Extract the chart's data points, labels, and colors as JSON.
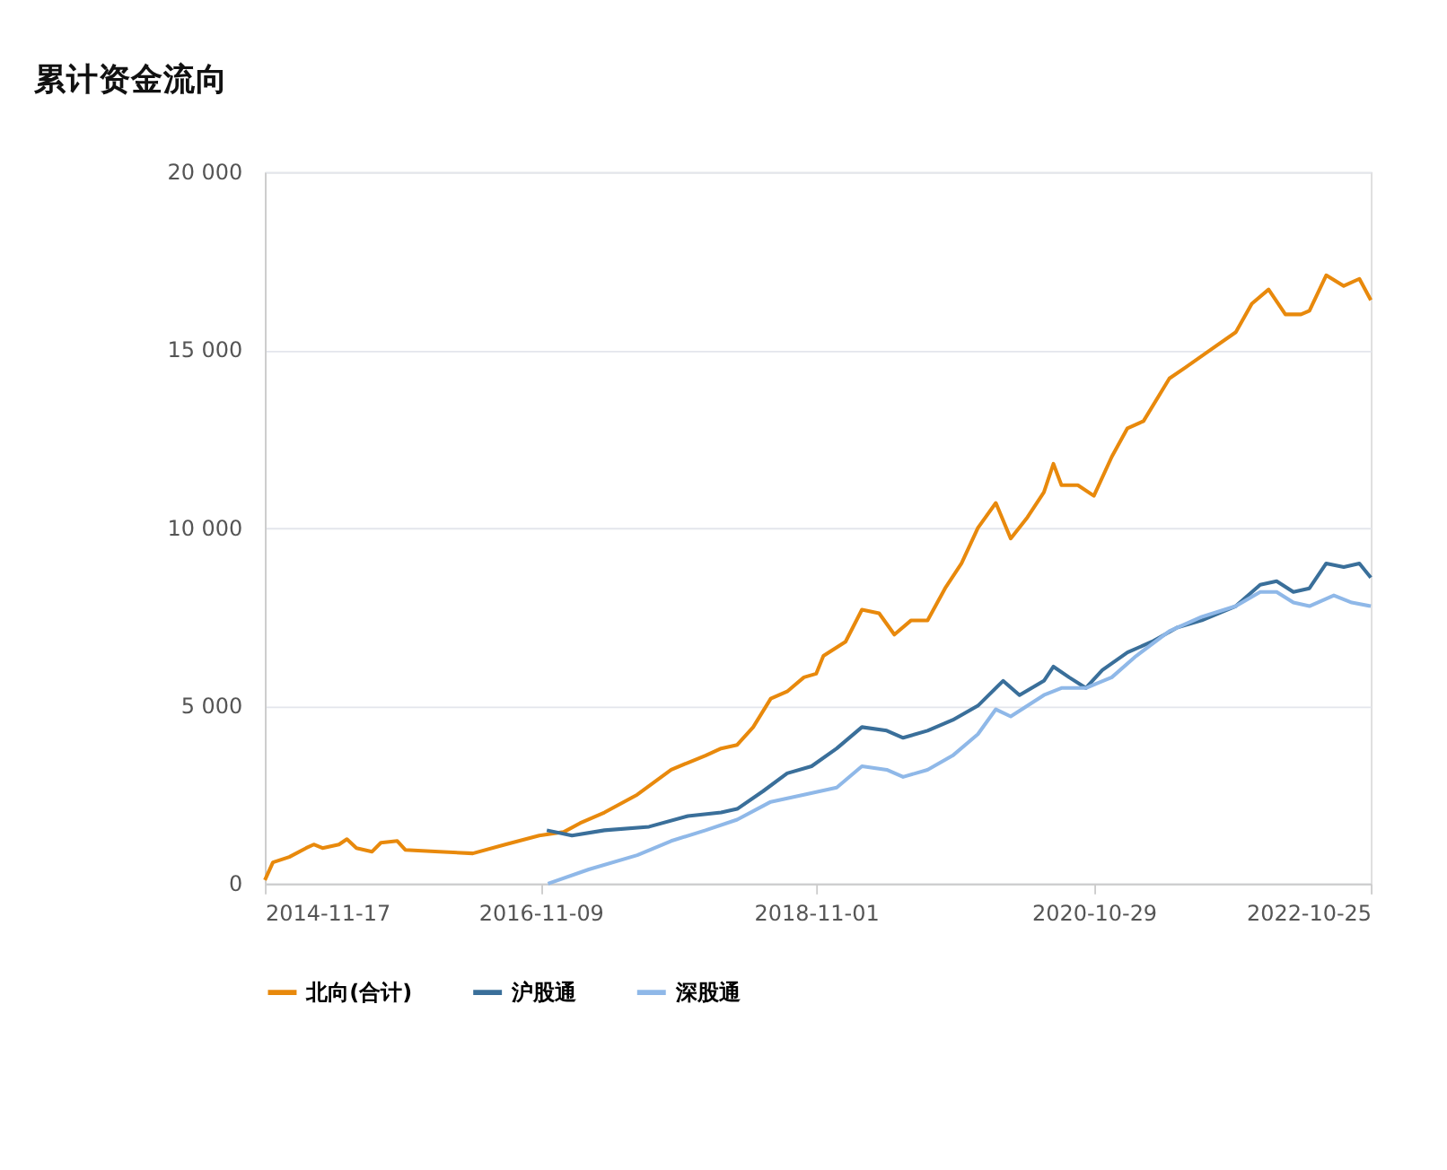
{
  "chart_data": {
    "type": "line",
    "title": "累计资金流向",
    "xlim": [
      "2014-11-17",
      "2022-10-25"
    ],
    "xticks": [
      "2014-11-17",
      "2016-11-09",
      "2018-11-01",
      "2020-10-29",
      "2022-10-25"
    ],
    "ylim": [
      0,
      20000
    ],
    "yticks": [
      0,
      {
        "value": 5000,
        "label": "5 000"
      },
      {
        "value": 10000,
        "label": "10 000"
      },
      {
        "value": 15000,
        "label": "15 000"
      },
      {
        "value": 20000,
        "label": "20 000"
      }
    ],
    "grid": "y",
    "legend": "bottom",
    "line_style": "solid",
    "marker": "none",
    "series": [
      {
        "name": "北向(合计)",
        "color": "#e8890c",
        "x": [
          "2014-11-17",
          "2014-12-08",
          "2015-01-20",
          "2015-03-05",
          "2015-03-25",
          "2015-04-17",
          "2015-05-30",
          "2015-06-20",
          "2015-07-15",
          "2015-08-25",
          "2015-09-17",
          "2015-10-30",
          "2015-11-20",
          "2016-02-17",
          "2016-05-15",
          "2016-08-08",
          "2016-11-05",
          "2017-01-08",
          "2017-02-20",
          "2017-04-25",
          "2017-07-20",
          "2017-10-17",
          "2017-11-30",
          "2018-01-15",
          "2018-02-25",
          "2018-04-08",
          "2018-05-20",
          "2018-07-05",
          "2018-08-17",
          "2018-09-30",
          "2018-11-01",
          "2018-11-20",
          "2019-01-17",
          "2019-03-01",
          "2019-04-15",
          "2019-05-25",
          "2019-07-08",
          "2019-08-20",
          "2019-10-05",
          "2019-11-17",
          "2019-12-30",
          "2020-02-15",
          "2020-03-25",
          "2020-05-08",
          "2020-06-20",
          "2020-07-15",
          "2020-08-05",
          "2020-09-17",
          "2020-10-29",
          "2020-12-15",
          "2021-01-25",
          "2021-03-08",
          "2021-05-15",
          "2021-06-25",
          "2021-08-30",
          "2021-11-05",
          "2021-12-17",
          "2022-01-30",
          "2022-03-15",
          "2022-04-25",
          "2022-05-17",
          "2022-06-30",
          "2022-08-15",
          "2022-09-25",
          "2022-10-25"
        ],
        "values": [
          100,
          600,
          750,
          1000,
          1100,
          1000,
          1100,
          1250,
          1000,
          900,
          1150,
          1200,
          950,
          900,
          850,
          1100,
          1350,
          1450,
          1700,
          2000,
          2500,
          3200,
          3400,
          3600,
          3800,
          3900,
          4400,
          5200,
          5400,
          5800,
          5900,
          6400,
          6800,
          7700,
          7600,
          7000,
          7400,
          7400,
          8300,
          9000,
          10000,
          10700,
          9700,
          10300,
          11000,
          11800,
          11200,
          11200,
          10900,
          12000,
          12800,
          13000,
          14200,
          14500,
          15000,
          15500,
          16300,
          16700,
          16000,
          16000,
          16100,
          17100,
          16800,
          17000,
          16400
        ]
      },
      {
        "name": "沪股通",
        "color": "#3a6f9a",
        "x": [
          "2016-11-25",
          "2017-01-30",
          "2017-04-25",
          "2017-08-20",
          "2017-11-30",
          "2018-02-25",
          "2018-04-08",
          "2018-06-15",
          "2018-08-17",
          "2018-10-20",
          "2018-12-25",
          "2019-03-01",
          "2019-05-05",
          "2019-06-17",
          "2019-08-20",
          "2019-10-25",
          "2019-12-30",
          "2020-03-05",
          "2020-04-17",
          "2020-06-20",
          "2020-07-15",
          "2020-08-25",
          "2020-10-08",
          "2020-11-20",
          "2021-01-25",
          "2021-03-30",
          "2021-06-05",
          "2021-08-08",
          "2021-11-05",
          "2022-01-08",
          "2022-02-20",
          "2022-04-05",
          "2022-05-17",
          "2022-06-30",
          "2022-08-15",
          "2022-09-25",
          "2022-10-25"
        ],
        "values": [
          1500,
          1350,
          1500,
          1600,
          1900,
          2000,
          2100,
          2600,
          3100,
          3300,
          3800,
          4400,
          4300,
          4100,
          4300,
          4600,
          5000,
          5700,
          5300,
          5700,
          6100,
          5800,
          5500,
          6000,
          6500,
          6800,
          7200,
          7400,
          7800,
          8400,
          8500,
          8200,
          8300,
          9000,
          8900,
          9000,
          8600
        ]
      },
      {
        "name": "深股通",
        "color": "#8fb8e8",
        "x": [
          "2016-11-28",
          "2017-03-15",
          "2017-07-20",
          "2017-10-17",
          "2018-01-15",
          "2018-04-08",
          "2018-07-05",
          "2018-09-30",
          "2018-12-25",
          "2019-03-01",
          "2019-05-05",
          "2019-06-17",
          "2019-08-20",
          "2019-10-25",
          "2019-12-30",
          "2020-02-15",
          "2020-03-25",
          "2020-05-08",
          "2020-06-20",
          "2020-08-05",
          "2020-10-08",
          "2020-12-15",
          "2021-02-17",
          "2021-05-15",
          "2021-08-08",
          "2021-11-05",
          "2022-01-08",
          "2022-02-20",
          "2022-04-05",
          "2022-05-17",
          "2022-07-20",
          "2022-09-05",
          "2022-10-25"
        ],
        "values": [
          0,
          400,
          800,
          1200,
          1500,
          1800,
          2300,
          2500,
          2700,
          3300,
          3200,
          3000,
          3200,
          3600,
          4200,
          4900,
          4700,
          5000,
          5300,
          5500,
          5500,
          5800,
          6400,
          7100,
          7500,
          7800,
          8200,
          8200,
          7900,
          7800,
          8100,
          7900,
          7800
        ]
      }
    ]
  }
}
